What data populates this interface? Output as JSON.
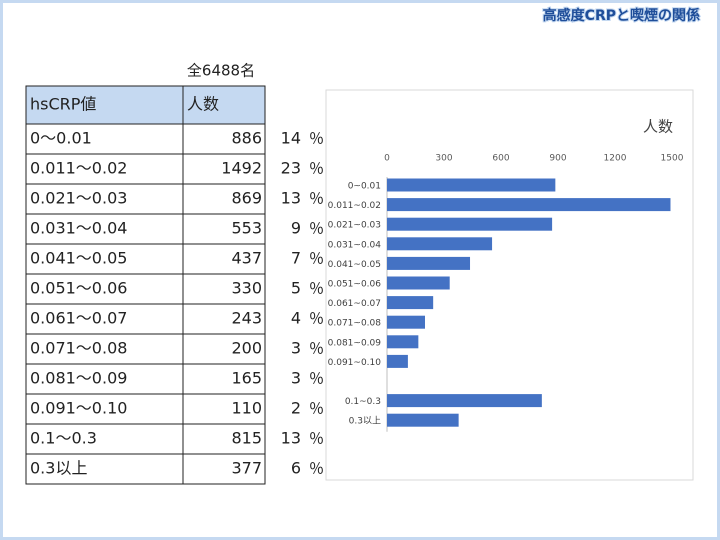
{
  "header": {
    "title": "高感度CRPと喫煙の関係",
    "total": "全6488名"
  },
  "table": {
    "columns": [
      "hsCRP値",
      "人数"
    ],
    "percent_sign": "％",
    "rows": [
      [
        "0〜0.01",
        886,
        14
      ],
      [
        "0.011〜0.02",
        1492,
        23
      ],
      [
        "0.021〜0.03",
        869,
        13
      ],
      [
        "0.031〜0.04",
        553,
        9
      ],
      [
        "0.041〜0.05",
        437,
        7
      ],
      [
        "0.051〜0.06",
        330,
        5
      ],
      [
        "0.061〜0.07",
        243,
        4
      ],
      [
        "0.071〜0.08",
        200,
        3
      ],
      [
        "0.081〜0.09",
        165,
        3
      ],
      [
        "0.091〜0.10",
        110,
        2
      ],
      [
        "0.1〜0.3",
        815,
        13
      ],
      [
        "0.3以上",
        377,
        6
      ]
    ]
  },
  "chart_data": {
    "type": "barh",
    "title": "人数",
    "categories": [
      "0~0.01",
      "0.011~0.02",
      "0.021~0.03",
      "0.031~0.04",
      "0.041~0.05",
      "0.051~0.06",
      "0.061~0.07",
      "0.071~0.08",
      "0.081~0.09",
      "0.091~0.10",
      null,
      "0.1~0.3",
      "0.3以上"
    ],
    "values": [
      886,
      1492,
      869,
      553,
      437,
      330,
      243,
      200,
      165,
      110,
      null,
      815,
      377
    ],
    "color": "#4472c4",
    "xlim": [
      0,
      1600
    ],
    "xticks": [
      0,
      300,
      600,
      900,
      1200,
      1500
    ],
    "grid": false
  }
}
